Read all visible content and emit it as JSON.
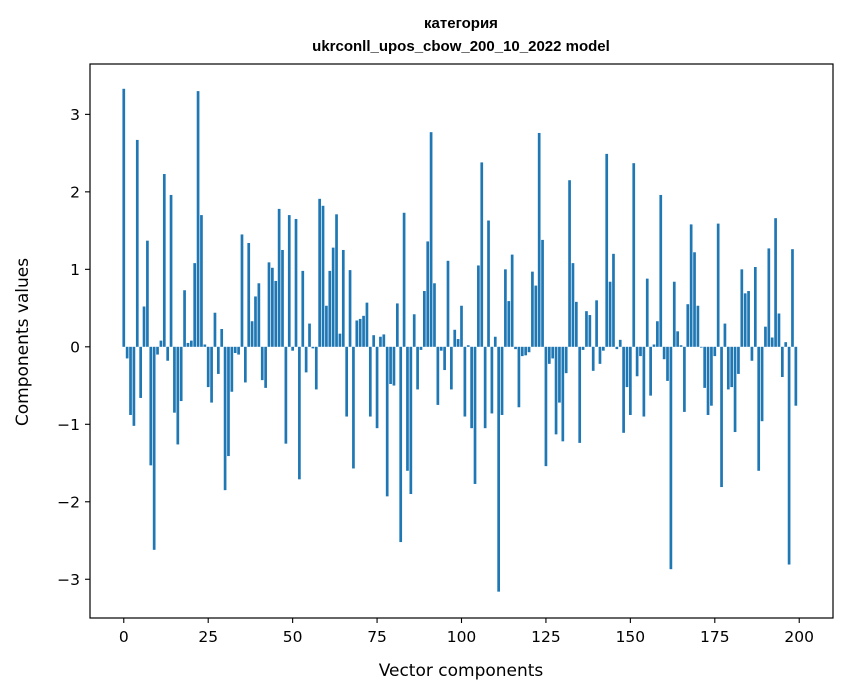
{
  "chart_data": {
    "type": "bar",
    "title": "категория",
    "subtitle": "ukrconll_upos_cbow_200_10_2022 model",
    "xlabel": "Vector components",
    "ylabel": "Components values",
    "xlim": [
      -10,
      210
    ],
    "ylim": [
      -3.5,
      3.65
    ],
    "xticks": [
      0,
      25,
      50,
      75,
      100,
      125,
      150,
      175,
      200
    ],
    "yticks": [
      -3,
      -2,
      -1,
      0,
      1,
      2,
      3
    ],
    "grid": false,
    "color": "#1f77b4",
    "x": [
      0,
      1,
      2,
      3,
      4,
      5,
      6,
      7,
      8,
      9,
      10,
      11,
      12,
      13,
      14,
      15,
      16,
      17,
      18,
      19,
      20,
      21,
      22,
      23,
      24,
      25,
      26,
      27,
      28,
      29,
      30,
      31,
      32,
      33,
      34,
      35,
      36,
      37,
      38,
      39,
      40,
      41,
      42,
      43,
      44,
      45,
      46,
      47,
      48,
      49,
      50,
      51,
      52,
      53,
      54,
      55,
      56,
      57,
      58,
      59,
      60,
      61,
      62,
      63,
      64,
      65,
      66,
      67,
      68,
      69,
      70,
      71,
      72,
      73,
      74,
      75,
      76,
      77,
      78,
      79,
      80,
      81,
      82,
      83,
      84,
      85,
      86,
      87,
      88,
      89,
      90,
      91,
      92,
      93,
      94,
      95,
      96,
      97,
      98,
      99,
      100,
      101,
      102,
      103,
      104,
      105,
      106,
      107,
      108,
      109,
      110,
      111,
      112,
      113,
      114,
      115,
      116,
      117,
      118,
      119,
      120,
      121,
      122,
      123,
      124,
      125,
      126,
      127,
      128,
      129,
      130,
      131,
      132,
      133,
      134,
      135,
      136,
      137,
      138,
      139,
      140,
      141,
      142,
      143,
      144,
      145,
      146,
      147,
      148,
      149,
      150,
      151,
      152,
      153,
      154,
      155,
      156,
      157,
      158,
      159,
      160,
      161,
      162,
      163,
      164,
      165,
      166,
      167,
      168,
      169,
      170,
      171,
      172,
      173,
      174,
      175,
      176,
      177,
      178,
      179,
      180,
      181,
      182,
      183,
      184,
      185,
      186,
      187,
      188,
      189,
      190,
      191,
      192,
      193,
      194,
      195,
      196,
      197,
      198,
      199
    ],
    "values": [
      3.33,
      -0.15,
      -0.88,
      -1.02,
      2.67,
      -0.66,
      0.52,
      1.37,
      -1.53,
      -2.62,
      -0.1,
      0.08,
      2.23,
      -0.18,
      1.96,
      -0.85,
      -1.26,
      -0.7,
      0.73,
      0.05,
      0.08,
      1.08,
      3.3,
      1.7,
      0.03,
      -0.52,
      -0.72,
      0.44,
      -0.35,
      0.23,
      -1.85,
      -1.41,
      -0.58,
      -0.08,
      -0.1,
      1.45,
      -0.46,
      1.34,
      0.33,
      0.65,
      0.82,
      -0.43,
      -0.53,
      1.09,
      1.02,
      0.85,
      1.78,
      1.25,
      -1.25,
      1.7,
      -0.05,
      1.65,
      -1.71,
      0.98,
      -0.33,
      0.3,
      -0.02,
      -0.55,
      1.91,
      1.82,
      0.53,
      0.98,
      1.28,
      1.71,
      0.17,
      1.25,
      -0.9,
      0.99,
      -1.57,
      0.34,
      0.36,
      0.4,
      0.57,
      -0.9,
      0.15,
      -1.05,
      0.13,
      0.16,
      -1.93,
      -0.48,
      -0.5,
      0.56,
      -2.52,
      1.73,
      -1.6,
      -1.9,
      0.42,
      -0.55,
      -0.04,
      0.72,
      1.36,
      2.77,
      0.82,
      -0.75,
      -0.05,
      -0.3,
      1.11,
      -0.55,
      0.22,
      0.1,
      0.53,
      -0.9,
      0.02,
      -1.05,
      -1.77,
      1.05,
      2.38,
      -1.05,
      1.63,
      -0.86,
      0.13,
      -3.16,
      -0.88,
      1.0,
      0.59,
      1.19,
      -0.03,
      -0.78,
      -0.12,
      -0.11,
      -0.07,
      0.97,
      0.79,
      2.76,
      1.38,
      -1.54,
      -0.22,
      -0.15,
      -1.13,
      -0.72,
      -1.22,
      -0.34,
      2.15,
      1.08,
      0.58,
      -1.24,
      -0.04,
      0.46,
      0.41,
      -0.31,
      0.6,
      -0.22,
      -0.05,
      2.49,
      0.84,
      1.2,
      -0.03,
      0.09,
      -1.11,
      -0.52,
      -0.88,
      2.37,
      -0.38,
      -0.12,
      -0.9,
      0.88,
      -0.63,
      0.03,
      0.33,
      1.96,
      -0.16,
      -0.44,
      -2.87,
      0.84,
      0.2,
      0.02,
      -0.84,
      0.55,
      1.58,
      1.22,
      0.53,
      -0.01,
      -0.53,
      -0.88,
      -0.76,
      -0.12,
      1.59,
      -1.81,
      0.3,
      -0.55,
      -0.52,
      -1.1,
      -0.35,
      1.0,
      0.69,
      0.72,
      -0.18,
      1.03,
      -1.6,
      -0.96,
      0.26,
      1.27,
      0.12,
      1.66,
      0.43,
      -0.39,
      0.06,
      -2.81,
      1.26,
      -0.76
    ]
  }
}
